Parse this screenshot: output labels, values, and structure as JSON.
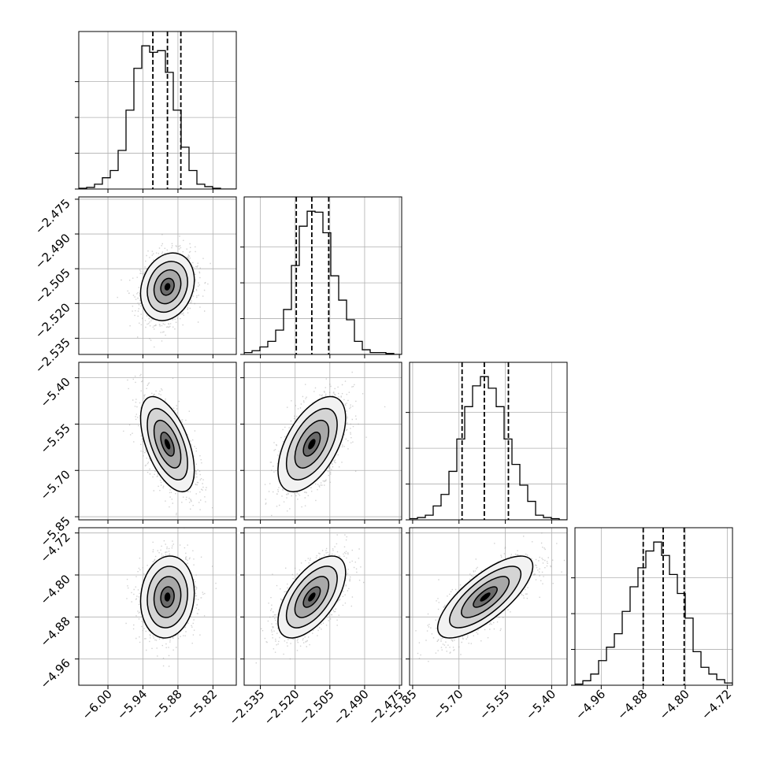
{
  "chart_data": {
    "type": "corner",
    "parameters": [
      {
        "id": "p0",
        "range": [
          -6.05,
          -5.78
        ],
        "ticks": [
          -6.0,
          -5.94,
          -5.88,
          -5.82
        ],
        "tick_labels": [
          "−6.00",
          "−5.94",
          "−5.88",
          "−5.82"
        ],
        "quantiles": [
          -5.923,
          -5.898,
          -5.875
        ],
        "mean": -5.898,
        "sd": 0.023
      },
      {
        "id": "p1",
        "range": [
          -2.542,
          -2.474
        ],
        "ticks": [
          -2.535,
          -2.52,
          -2.505,
          -2.49,
          -2.475
        ],
        "tick_labels": [
          "−2.535",
          "−2.520",
          "−2.505",
          "−2.490",
          "−2.475"
        ],
        "quantiles": [
          -2.5195,
          -2.5128,
          -2.5055
        ],
        "mean": -2.5128,
        "sd": 0.0073
      },
      {
        "id": "p2",
        "range": [
          -5.86,
          -5.35
        ],
        "ticks": [
          -5.85,
          -5.7,
          -5.55,
          -5.4
        ],
        "tick_labels": [
          "−5.85",
          "−5.70",
          "−5.55",
          "−5.40"
        ],
        "quantiles": [
          -5.69,
          -5.618,
          -5.54
        ],
        "mean": -5.615,
        "sd": 0.077
      },
      {
        "id": "p3",
        "range": [
          -5.01,
          -4.71
        ],
        "ticks": [
          -4.96,
          -4.88,
          -4.8,
          -4.72
        ],
        "tick_labels": [
          "−4.96",
          "−4.88",
          "−4.80",
          "−4.72"
        ],
        "quantiles": [
          -4.88,
          -4.842,
          -4.802
        ],
        "mean": -4.842,
        "sd": 0.039
      }
    ],
    "histograms": [
      {
        "param": "p0",
        "bin_edges": [
          -6.05,
          -6.0365,
          -6.023,
          -6.0095,
          -5.996,
          -5.9825,
          -5.969,
          -5.9555,
          -5.942,
          -5.9285,
          -5.915,
          -5.9015,
          -5.888,
          -5.8745,
          -5.861,
          -5.8475,
          -5.834,
          -5.8205,
          -5.807,
          -5.7935,
          -5.78
        ],
        "counts": [
          1,
          2,
          6,
          14,
          23,
          48,
          98,
          150,
          178,
          170,
          172,
          145,
          98,
          52,
          23,
          6,
          3,
          1,
          0,
          0
        ]
      },
      {
        "param": "p1",
        "bin_edges": [
          -2.542,
          -2.5386,
          -2.5352,
          -2.5318,
          -2.5284,
          -2.525,
          -2.5216,
          -2.5182,
          -2.5148,
          -2.5114,
          -2.508,
          -2.5046,
          -2.5012,
          -2.4978,
          -2.4944,
          -2.491,
          -2.4876,
          -2.4842,
          -2.4808,
          -2.4774,
          -2.474
        ],
        "counts": [
          2,
          4,
          8,
          14,
          26,
          48,
          95,
          137,
          153,
          152,
          130,
          84,
          58,
          37,
          14,
          5,
          2,
          2,
          1,
          0
        ]
      },
      {
        "param": "p2",
        "bin_edges": [
          -5.86,
          -5.8345,
          -5.809,
          -5.7835,
          -5.758,
          -5.7325,
          -5.707,
          -5.6815,
          -5.656,
          -5.6305,
          -5.605,
          -5.5795,
          -5.554,
          -5.5285,
          -5.503,
          -5.4775,
          -5.452,
          -5.4265,
          -5.401,
          -5.3755,
          -5.35
        ],
        "counts": [
          1,
          2,
          4,
          12,
          22,
          42,
          70,
          98,
          116,
          124,
          114,
          98,
          70,
          48,
          30,
          16,
          4,
          2,
          1,
          0
        ]
      },
      {
        "param": "p3",
        "bin_edges": [
          -5.01,
          -4.995,
          -4.98,
          -4.965,
          -4.95,
          -4.935,
          -4.92,
          -4.905,
          -4.89,
          -4.875,
          -4.86,
          -4.845,
          -4.83,
          -4.815,
          -4.8,
          -4.785,
          -4.77,
          -4.755,
          -4.74,
          -4.725,
          -4.71
        ],
        "counts": [
          1,
          4,
          10,
          22,
          34,
          46,
          66,
          88,
          105,
          120,
          128,
          116,
          99,
          82,
          60,
          30,
          16,
          10,
          5,
          2
        ]
      }
    ],
    "pairs": [
      {
        "x": "p0",
        "y": "p1",
        "correlation": 0.2
      },
      {
        "x": "p0",
        "y": "p2",
        "correlation": -0.55
      },
      {
        "x": "p1",
        "y": "p2",
        "correlation": 0.55
      },
      {
        "x": "p0",
        "y": "p3",
        "correlation": 0.1
      },
      {
        "x": "p1",
        "y": "p3",
        "correlation": 0.6
      },
      {
        "x": "p2",
        "y": "p3",
        "correlation": 0.75
      }
    ],
    "contour_levels": [
      0.5,
      1.0,
      1.5,
      2.0
    ],
    "grid": true,
    "colors": {
      "line": "#000000",
      "grid": "#b0b0b0",
      "points": "#999999",
      "fill": "#6b6b6b"
    }
  }
}
